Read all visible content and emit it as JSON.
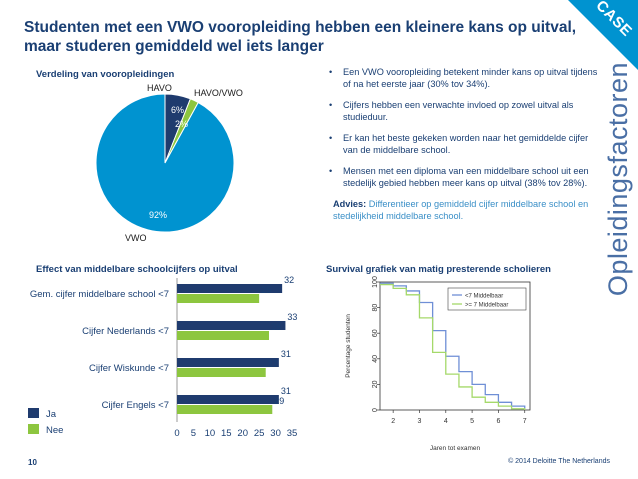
{
  "title": "Studenten met een VWO vooropleiding hebben een kleinere kans op uitval, maar studeren gemiddeld wel iets langer",
  "corner_label": "CASE",
  "side_label": "Opleidingsfactoren",
  "colors": {
    "dark_blue": "#1a3f73",
    "pie_blue": "#0093d0",
    "green": "#8dc63f",
    "navy": "#1f3b6e"
  },
  "pie": {
    "title": "Verdeling van vooropleidingen",
    "slices": [
      {
        "label": "HAVO",
        "percent_label": "6%",
        "value": 6
      },
      {
        "label": "HAVO/VWO",
        "percent_label": "2%",
        "value": 2
      },
      {
        "label": "VWO",
        "percent_label": "92%",
        "value": 92
      }
    ]
  },
  "bullets": [
    "Een VWO vooropleiding betekent minder kans op uitval tijdens of na het eerste jaar (30% tov 34%).",
    "Cijfers hebben een verwachte invloed op zowel uitval als studieduur.",
    "Er kan het beste gekeken worden naar het gemiddelde cijfer van de middelbare school.",
    "Mensen met een diploma van een middelbare school uit een stedelijk gebied hebben meer kans op uitval (38% tov 28%)."
  ],
  "advice": {
    "label": "Advies:",
    "text": "Differentieer op gemiddeld cijfer middelbare school en stedelijkheid middelbare school."
  },
  "bar_chart_title": "Effect van middelbare schoolcijfers op uitval",
  "survival_title": "Survival grafiek van matig presterende scholieren",
  "footer": {
    "page": "10",
    "copyright": "© 2014 Deloitte The Netherlands"
  },
  "chart_data": [
    {
      "type": "pie",
      "title": "Verdeling van vooropleidingen",
      "categories": [
        "HAVO",
        "HAVO/VWO",
        "VWO"
      ],
      "values": [
        6,
        2,
        92
      ]
    },
    {
      "type": "bar",
      "orientation": "horizontal",
      "title": "Effect van middelbare schoolcijfers op uitval",
      "categories": [
        "Gem. cijfer middelbare school <7",
        "Cijfer Nederlands <7",
        "Cijfer Wiskunde <7",
        "Cijfer Engels <7"
      ],
      "series": [
        {
          "name": "Ja",
          "values": [
            32,
            33,
            31,
            31
          ]
        },
        {
          "name": "Nee",
          "values": [
            25,
            28,
            27,
            29
          ]
        }
      ],
      "xlim": [
        0,
        35
      ],
      "xticks": [
        "0",
        "5",
        "10",
        "15",
        "20",
        "25",
        "30",
        "35"
      ],
      "legend": "bottom-left"
    },
    {
      "type": "line",
      "title": "Survival grafiek van matig presterende scholieren",
      "xlabel": "Jaren tot examen",
      "ylabel": "Percentage studenten",
      "xlim": [
        1.5,
        7.2
      ],
      "ylim": [
        0,
        100
      ],
      "xticks": [
        "2",
        "3",
        "4",
        "5",
        "6",
        "7"
      ],
      "yticks": [
        "0",
        "20",
        "40",
        "60",
        "80",
        "100"
      ],
      "legend": "top-right",
      "series": [
        {
          "name": "<7 Middelbaar",
          "x": [
            1.5,
            2.0,
            2.5,
            3.0,
            3.5,
            4.0,
            4.5,
            5.0,
            5.5,
            6.0,
            6.5,
            7.0
          ],
          "values": [
            99,
            97,
            93,
            84,
            62,
            42,
            30,
            20,
            12,
            6,
            3,
            1
          ]
        },
        {
          "name": ">= 7 Middelbaar",
          "x": [
            1.5,
            2.0,
            2.5,
            3.0,
            3.5,
            4.0,
            4.5,
            5.0,
            5.5,
            6.0,
            6.5,
            7.0
          ],
          "values": [
            98,
            95,
            90,
            72,
            45,
            28,
            18,
            10,
            6,
            3,
            1,
            0
          ]
        }
      ]
    }
  ]
}
